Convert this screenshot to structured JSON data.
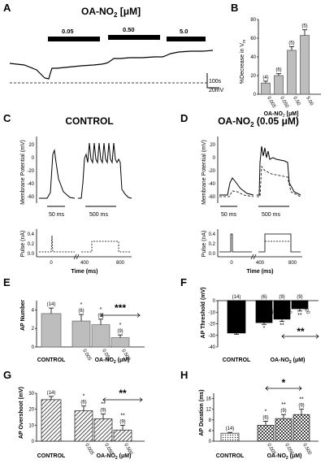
{
  "panels": {
    "A": {
      "letter": "A",
      "title": "OA-NO",
      "title_sub": "2",
      "title_unit": " [μM]",
      "doses": [
        "0.05",
        "0.50",
        "5.0"
      ],
      "scale_time": "100s",
      "scale_voltage": "20mV"
    },
    "B": {
      "letter": "B",
      "ylabel": "%Decrease in V",
      "ylabel_sub": "m",
      "xlabel": "OA-NO",
      "xlabel_sub": "2",
      "xlabel_unit": " [μM]"
    },
    "C": {
      "letter": "C",
      "title": "CONTROL",
      "ylabel_top": "Membrane Potential (mV)",
      "ylabel_bottom": "Pulse (nA)",
      "xlabel_bottom": "Time (ms)",
      "scalebar_left": "50 ms",
      "scalebar_right": "500 ms",
      "yticks_top": [
        "20",
        "0",
        "-20",
        "-40",
        "-60"
      ],
      "yticks_bottom": [
        "0.4",
        "0.2",
        "0.0"
      ],
      "xticks_bottom": [
        "0",
        "400",
        "800"
      ]
    },
    "D": {
      "letter": "D",
      "title": "OA-NO",
      "title_sub": "2",
      "title_unit": " (0.05 μM)",
      "ylabel_top": "Membrane Potential (mV)",
      "ylabel_bottom": "Pulse (nA)",
      "xlabel_bottom": "Time (ms)",
      "scalebar_left": "50 ms",
      "scalebar_right": "500 ms",
      "yticks_top": [
        "20",
        "0",
        "-20",
        "-40",
        "-60"
      ],
      "yticks_bottom": [
        "0.4",
        "0.2",
        "0.0"
      ],
      "xticks_bottom": [
        "0",
        "400",
        "800"
      ]
    },
    "E": {
      "letter": "E",
      "ylabel": "AP Number",
      "control_label": "CONTROL",
      "xlabel": "OA-NO",
      "xlabel_sub": "2",
      "xlabel_unit": " (μM)",
      "sig": "***"
    },
    "F": {
      "letter": "F",
      "ylabel": "AP Threshold (mV)",
      "control_label": "CONTROL",
      "xlabel": "OA-NO",
      "xlabel_sub": "2",
      "xlabel_unit": " (μM)",
      "sig": "**"
    },
    "G": {
      "letter": "G",
      "ylabel": "AP Overshoot (mV)",
      "control_label": "CONTROL",
      "xlabel": "OA-NO",
      "xlabel_sub": "2",
      "xlabel_unit": " (μM)",
      "sig": "**"
    },
    "H": {
      "letter": "H",
      "ylabel": "AP Duration (ms)",
      "control_label": "CONTROL",
      "xlabel": "OA-NO",
      "xlabel_sub": "2",
      "xlabel_unit": " (μM)",
      "sig": "*"
    }
  },
  "chart_data": [
    {
      "panel": "B",
      "type": "bar",
      "categories": [
        "0.005",
        "0.050",
        "0.50",
        "5.00"
      ],
      "values": [
        12,
        20,
        47,
        63
      ],
      "errors": [
        2,
        2,
        4,
        6
      ],
      "n_labels": [
        "(4)",
        "(6)",
        "(5)",
        "(5)"
      ],
      "ylim": [
        0,
        80
      ],
      "yticks": [
        0,
        20,
        40,
        60,
        80
      ],
      "color": "#bdbdbd"
    },
    {
      "panel": "E",
      "type": "bar",
      "categories": [
        "0.005",
        "0.050",
        "0.500"
      ],
      "control": {
        "value": 3.6,
        "error": 0.6,
        "n": "(14)"
      },
      "values": [
        2.8,
        2.4,
        1.0
      ],
      "errors": [
        0.7,
        0.6,
        0.3
      ],
      "n_labels": [
        "(6)",
        "(9)",
        "(9)"
      ],
      "stars": [
        "*",
        "*",
        "*"
      ],
      "ylim": [
        0,
        5
      ],
      "yticks": [
        0,
        2,
        4
      ],
      "color": "#bdbdbd"
    },
    {
      "panel": "F",
      "type": "bar",
      "categories": [
        "0.005",
        "0.050",
        "0.500"
      ],
      "control": {
        "value": -28,
        "error": 1,
        "n": "(14)"
      },
      "values": [
        -19,
        -16,
        -7
      ],
      "errors": [
        1.5,
        2,
        2
      ],
      "n_labels": [
        "(6)",
        "(9)",
        "(9)"
      ],
      "stars": [
        "*",
        "**",
        "**"
      ],
      "ylim": [
        -40,
        0
      ],
      "yticks": [
        0,
        -10,
        -20,
        -30,
        -40
      ],
      "color": "#000000"
    },
    {
      "panel": "G",
      "type": "bar",
      "categories": [
        "0.005",
        "0.050",
        "0.500"
      ],
      "control": {
        "value": 26,
        "error": 2,
        "n": "(14)"
      },
      "values": [
        19,
        14,
        7
      ],
      "errors": [
        3,
        3,
        3
      ],
      "n_labels": [
        "(6)",
        "(9)",
        "(9)"
      ],
      "stars": [
        "*",
        "**",
        "**"
      ],
      "ylim": [
        0,
        30
      ],
      "yticks": [
        0,
        10,
        20,
        30
      ],
      "color": "#888888"
    },
    {
      "panel": "H",
      "type": "bar",
      "categories": [
        "0.005",
        "0.050",
        "0.500"
      ],
      "control": {
        "value": 3,
        "error": 0.3,
        "n": "(14)"
      },
      "values": [
        6,
        8.5,
        10
      ],
      "errors": [
        1.5,
        1.5,
        2
      ],
      "n_labels": [
        "(6)",
        "(9)",
        "(9)"
      ],
      "stars": [
        "*",
        "**",
        "**"
      ],
      "ylim": [
        0,
        18
      ],
      "yticks": [
        0,
        4,
        8,
        12,
        16
      ],
      "color": "#cccccc"
    }
  ]
}
